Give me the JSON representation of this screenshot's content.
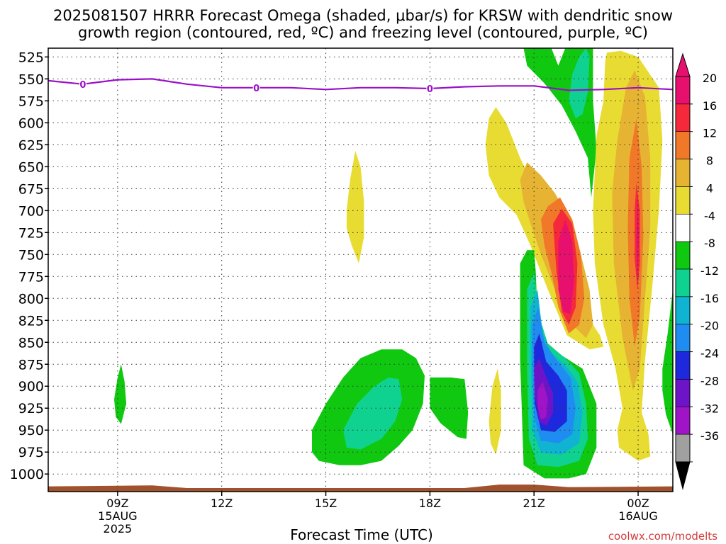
{
  "title_line1": "2025081507 HRRR Forecast Omega (shaded, μbar/s) for KRSW with dendritic snow",
  "title_line2": "growth region (contoured, red, ºC) and freezing level (contoured, purple, ºC)",
  "xlabel": "Forecast Time (UTC)",
  "credit": "coolwx.com/modelts",
  "chart_data": {
    "type": "contour",
    "x_ticks": [
      {
        "hour": 9,
        "lines": [
          "09Z",
          "15AUG",
          "2025"
        ]
      },
      {
        "hour": 12,
        "lines": [
          "12Z"
        ]
      },
      {
        "hour": 15,
        "lines": [
          "15Z"
        ]
      },
      {
        "hour": 18,
        "lines": [
          "18Z"
        ]
      },
      {
        "hour": 21,
        "lines": [
          "21Z"
        ]
      },
      {
        "hour": 24,
        "lines": [
          "00Z",
          "16AUG"
        ]
      }
    ],
    "xlim": [
      7,
      25
    ],
    "y_ticks": [
      525,
      550,
      575,
      600,
      625,
      650,
      675,
      700,
      725,
      750,
      775,
      800,
      825,
      850,
      875,
      900,
      925,
      950,
      975,
      1000
    ],
    "ylim": [
      1020,
      515
    ],
    "colorbar": {
      "labels": [
        "20",
        "16",
        "12",
        "8",
        "4",
        "-4",
        "-8",
        "-12",
        "-16",
        "-20",
        "-24",
        "-28",
        "-32",
        "-36"
      ],
      "colors": [
        "#e8106e",
        "#f5283c",
        "#f07828",
        "#e6b432",
        "#e8dc32",
        "#ffffff",
        "#10c810",
        "#10d290",
        "#10b4d2",
        "#1e8cf0",
        "#1e28dc",
        "#6e14c8",
        "#a014c8",
        "#a0a0a0"
      ]
    },
    "freezing_level": {
      "label": "0",
      "points": [
        [
          7,
          552
        ],
        [
          8,
          556
        ],
        [
          9,
          551
        ],
        [
          10,
          550
        ],
        [
          11,
          556
        ],
        [
          12,
          560
        ],
        [
          13,
          560
        ],
        [
          14,
          560
        ],
        [
          15,
          562
        ],
        [
          16,
          560
        ],
        [
          17,
          560
        ],
        [
          18,
          561
        ],
        [
          19,
          559
        ],
        [
          20,
          558
        ],
        [
          21,
          558
        ],
        [
          22,
          563
        ],
        [
          23,
          562
        ],
        [
          24,
          560
        ],
        [
          25,
          562
        ]
      ],
      "label_hours": [
        8,
        13,
        18
      ]
    }
  }
}
